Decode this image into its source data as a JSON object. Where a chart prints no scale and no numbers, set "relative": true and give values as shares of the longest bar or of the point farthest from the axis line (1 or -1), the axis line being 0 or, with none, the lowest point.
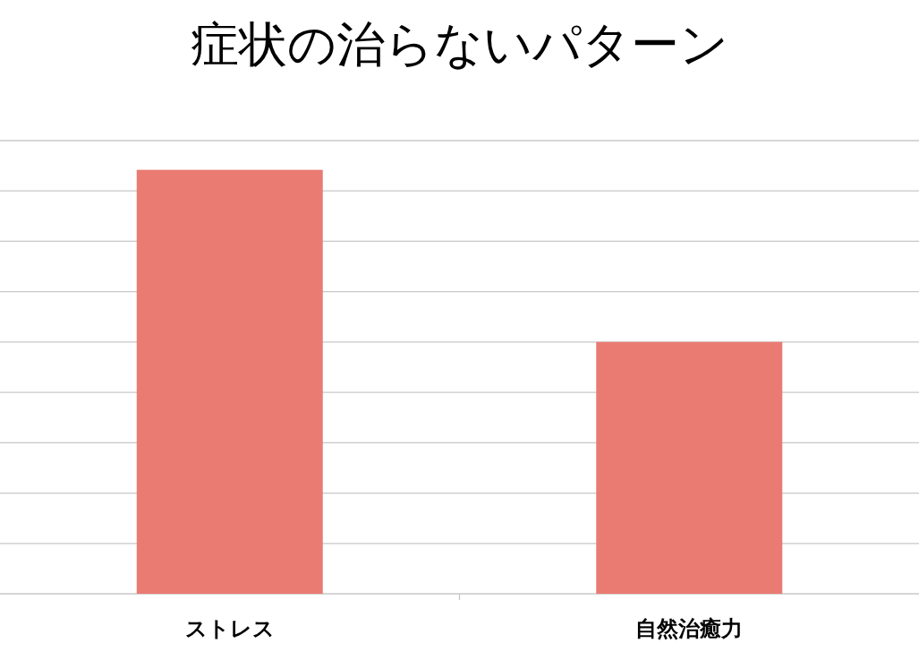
{
  "chart_data": {
    "type": "bar",
    "title": "症状の治らないパターン",
    "categories": [
      "ストレス",
      "自然治癒力"
    ],
    "values": [
      1,
      0.594
    ],
    "color": "#e97b73",
    "relative": true,
    "grid": "y"
  }
}
